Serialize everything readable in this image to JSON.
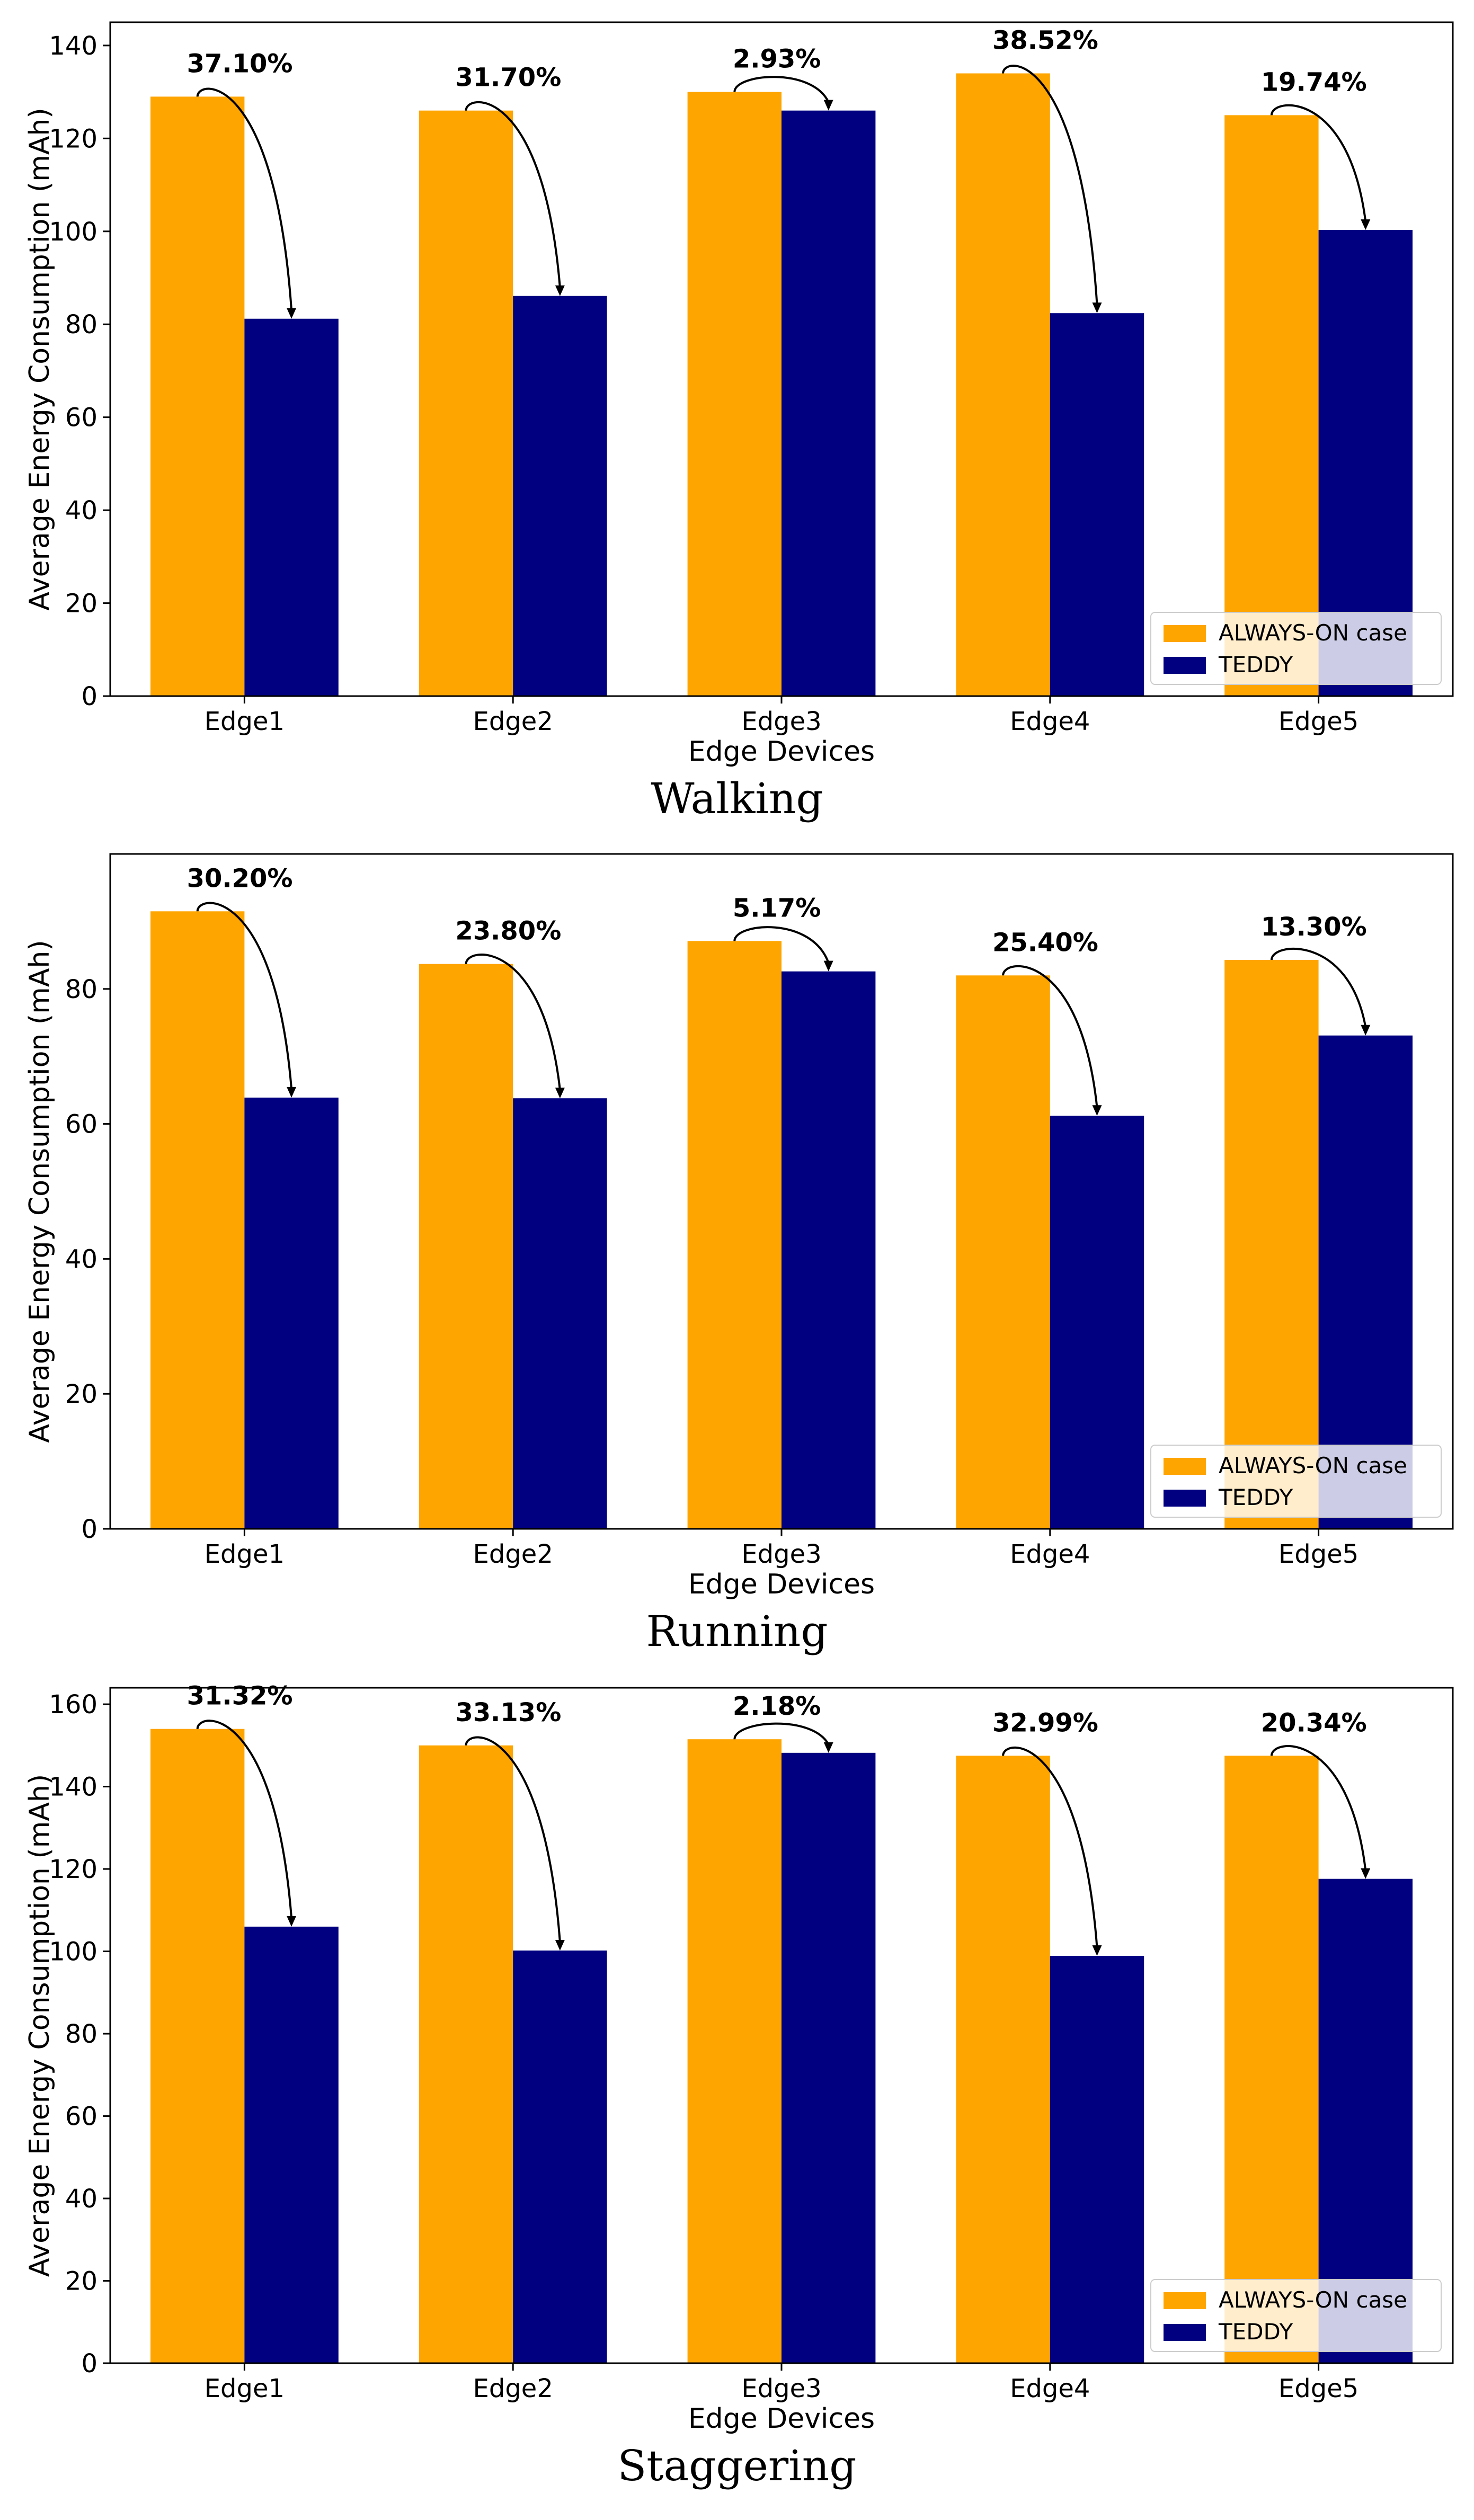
{
  "colors": {
    "always_on": "#FFA500",
    "teddy": "#000080"
  },
  "chart_data": [
    {
      "type": "bar",
      "title": "Walking",
      "xlabel": "Edge Devices",
      "ylabel": "Average Energy Consumption (mAh)",
      "categories": [
        "Edge1",
        "Edge2",
        "Edge3",
        "Edge4",
        "Edge5"
      ],
      "ylim": [
        0,
        145
      ],
      "yticks": [
        0,
        20,
        40,
        60,
        80,
        100,
        120,
        140
      ],
      "series": [
        {
          "name": "ALWAYS-ON case",
          "values": [
            129,
            126,
            130,
            134,
            125
          ]
        },
        {
          "name": "TEDDY",
          "values": [
            81.2,
            86.1,
            126,
            82.4,
            100.3
          ]
        }
      ],
      "annotations": [
        "37.10%",
        "31.70%",
        "2.93%",
        "38.52%",
        "19.74%"
      ],
      "legend": "bottom-right",
      "grid": false
    },
    {
      "type": "bar",
      "title": "Running",
      "xlabel": "Edge Devices",
      "ylabel": "Average Energy Consumption (mAh)",
      "categories": [
        "Edge1",
        "Edge2",
        "Edge3",
        "Edge4",
        "Edge5"
      ],
      "ylim": [
        0,
        100
      ],
      "yticks": [
        0,
        20,
        40,
        60,
        80
      ],
      "series": [
        {
          "name": "ALWAYS-ON case",
          "values": [
            91.5,
            83.7,
            87.1,
            82,
            84.3
          ]
        },
        {
          "name": "TEDDY",
          "values": [
            63.9,
            63.8,
            82.6,
            61.2,
            73.1
          ]
        }
      ],
      "annotations": [
        "30.20%",
        "23.80%",
        "5.17%",
        "25.40%",
        "13.30%"
      ],
      "legend": "bottom-right",
      "grid": false
    },
    {
      "type": "bar",
      "title": "Staggering",
      "xlabel": "Edge Devices",
      "ylabel": "Average Energy Consumption (mAh)",
      "categories": [
        "Edge1",
        "Edge2",
        "Edge3",
        "Edge4",
        "Edge5"
      ],
      "ylim": [
        0,
        164
      ],
      "yticks": [
        0,
        20,
        40,
        60,
        80,
        100,
        120,
        140,
        160
      ],
      "series": [
        {
          "name": "ALWAYS-ON case",
          "values": [
            154,
            150,
            151.5,
            147.5,
            147.5
          ]
        },
        {
          "name": "TEDDY",
          "values": [
            106,
            100.2,
            148.2,
            98.9,
            117.6
          ]
        }
      ],
      "annotations": [
        "31.32%",
        "33.13%",
        "2.18%",
        "32.99%",
        "20.34%"
      ],
      "legend": "bottom-right",
      "grid": false
    }
  ]
}
